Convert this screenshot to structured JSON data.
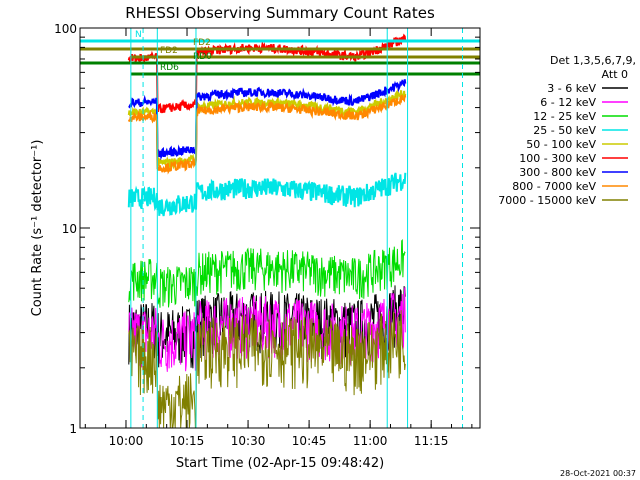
{
  "chart_data": {
    "type": "line",
    "title": "RHESSI Observing Summary Count Rates",
    "xlabel": "Start Time (02-Apr-15 09:48:42)",
    "ylabel": "Count Rate (s⁻¹ detector⁻¹)",
    "y_scale": "log",
    "ylim": [
      1,
      100
    ],
    "xlim": [
      "09:48:42",
      "11:27:00"
    ],
    "x_ticks": [
      "10:00",
      "10:15",
      "10:30",
      "10:45",
      "11:00",
      "11:15"
    ],
    "y_ticks": [
      "1",
      "10",
      "100"
    ],
    "legend": {
      "header_line1": "Det 1,3,5,6,7,9,",
      "header_line2": "Att 0",
      "placement": "right"
    },
    "series": [
      {
        "name": "3 - 6 keV",
        "color": "#000000",
        "x_min": [
          12,
          80
        ],
        "level": 3.4,
        "noise": 0.35
      },
      {
        "name": "6 - 12 keV",
        "color": "#ff00ff",
        "x_min": [
          12,
          80
        ],
        "level": 3.2,
        "noise": 0.35
      },
      {
        "name": "12 - 25 keV",
        "color": "#00dd00",
        "x_min": [
          12,
          80
        ],
        "level": 6.0,
        "noise": 0.25
      },
      {
        "name": "25 - 50 keV",
        "color": "#00e5e5",
        "x_min": [
          12,
          80
        ],
        "level": 15,
        "noise": 0.12
      },
      {
        "name": "50 - 100 keV",
        "color": "#cccc00",
        "x_min": [
          12,
          80
        ],
        "level": 40,
        "noise": 0.05
      },
      {
        "name": "100 - 300 keV",
        "color": "#ff0000",
        "x_min": [
          12,
          80
        ],
        "level": 75,
        "noise": 0.05
      },
      {
        "name": "300 - 800 keV",
        "color": "#0000ff",
        "x_min": [
          12,
          80
        ],
        "level": 45,
        "noise": 0.05
      },
      {
        "name": "800 - 7000 keV",
        "color": "#ff8800",
        "x_min": [
          12,
          80
        ],
        "level": 38,
        "noise": 0.05
      },
      {
        "name": "7000 - 15000 keV",
        "color": "#808000",
        "x_min": [
          12,
          80
        ],
        "level": 2.5,
        "noise": 0.4
      }
    ],
    "flags": [
      {
        "label": "N",
        "color": "#00e5e5"
      },
      {
        "label": "FD2",
        "color": "#808000"
      },
      {
        "label": "FD2",
        "color": "#808000"
      },
      {
        "label": "RD0",
        "color": "#008000"
      },
      {
        "label": "RD6",
        "color": "#008000"
      }
    ],
    "grid": false
  },
  "footer": {
    "timestamp": "28-Oct-2021 00:37"
  }
}
